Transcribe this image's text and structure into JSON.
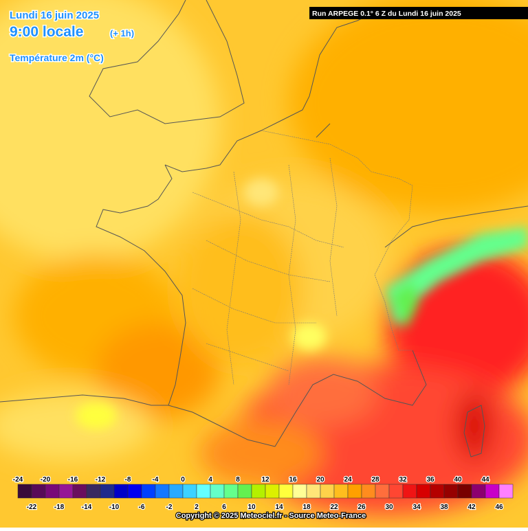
{
  "header": {
    "date": "Lundi 16 juin 2025",
    "time": "9:00 locale",
    "offset": "(+ 1h)",
    "parameter": "Température 2m (°C)",
    "run": "Run ARPEGE 0.1° 6 Z du Lundi 16 juin 2025"
  },
  "legend": {
    "labels": [
      -24,
      -22,
      -20,
      -18,
      -16,
      -14,
      -12,
      -10,
      -8,
      -6,
      -4,
      -2,
      0,
      2,
      4,
      6,
      8,
      10,
      12,
      14,
      16,
      18,
      20,
      22,
      24,
      26,
      28,
      30,
      32,
      34,
      36,
      38,
      40,
      42,
      44,
      46
    ],
    "colors": [
      "#3a0a3a",
      "#580a58",
      "#780a78",
      "#961696",
      "#6a0e5e",
      "#3a2a60",
      "#1e2a8c",
      "#0000c8",
      "#0000f0",
      "#0040ff",
      "#1478ff",
      "#28aaff",
      "#3cd2ff",
      "#64ffff",
      "#64ffc8",
      "#64ff8c",
      "#64f050",
      "#b4f000",
      "#dcf000",
      "#ffff3c",
      "#ffff96",
      "#ffe678",
      "#ffd24a",
      "#ffbe1e",
      "#ffa000",
      "#ff8c1e",
      "#ff6e3c",
      "#ff4632",
      "#f01414",
      "#d70000",
      "#b40000",
      "#960000",
      "#780000",
      "#8c006e",
      "#c800c8",
      "#ff80ff"
    ]
  },
  "footer": {
    "copyright": "Copyright © 2025 Meteociel.fr - Source Meteo-France"
  }
}
